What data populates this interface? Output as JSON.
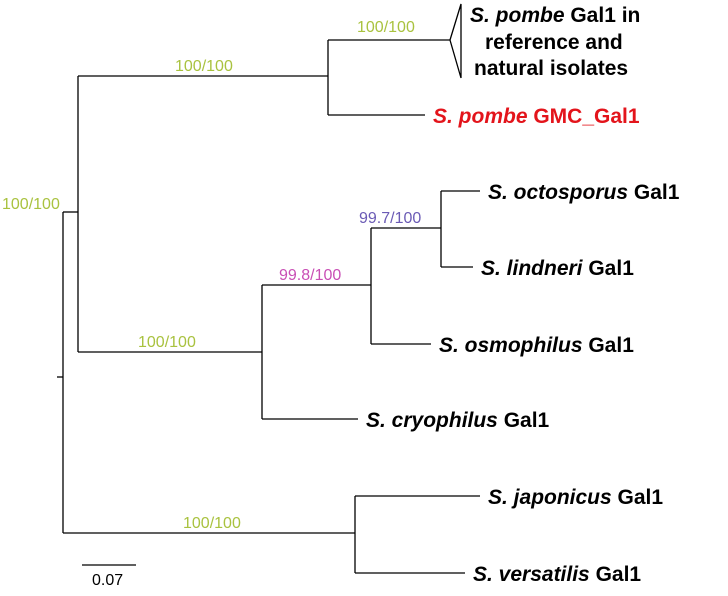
{
  "colors": {
    "branch": "#000000",
    "support_green": "#a9c23f",
    "support_purple": "#6b5bb5",
    "support_magenta": "#c94fb5",
    "taxon_default": "#000000",
    "taxon_highlight": "#e3141b"
  },
  "support_labels": {
    "pombe_clade": "100/100",
    "pombe_group": "100/100",
    "root_upper": "100/100",
    "osmophilus_group": "99.8/100",
    "octo_lindneri": "99.7/100",
    "crypto_group": "100/100",
    "japonicus_group": "100/100"
  },
  "taxa": {
    "collapsed_clade": {
      "line1_italic": "S. pombe",
      "line1_rest": " Gal1 in",
      "line2": "reference and",
      "line3": "natural isolates"
    },
    "gmc": {
      "italic": "S. pombe",
      "rest": " GMC_Gal1"
    },
    "octosporus": {
      "italic": "S. octosporus",
      "rest": " Gal1"
    },
    "lindneri": {
      "italic": "S. lindneri",
      "rest": " Gal1"
    },
    "osmophilus": {
      "italic": "S. osmophilus",
      "rest": " Gal1"
    },
    "cryophilus": {
      "italic": "S. cryophilus",
      "rest": " Gal1"
    },
    "japonicus": {
      "italic": "S. japonicus",
      "rest": " Gal1"
    },
    "versatilis": {
      "italic": "S. versatilis",
      "rest": " Gal1"
    }
  },
  "scale_bar": {
    "label": "0.07"
  }
}
